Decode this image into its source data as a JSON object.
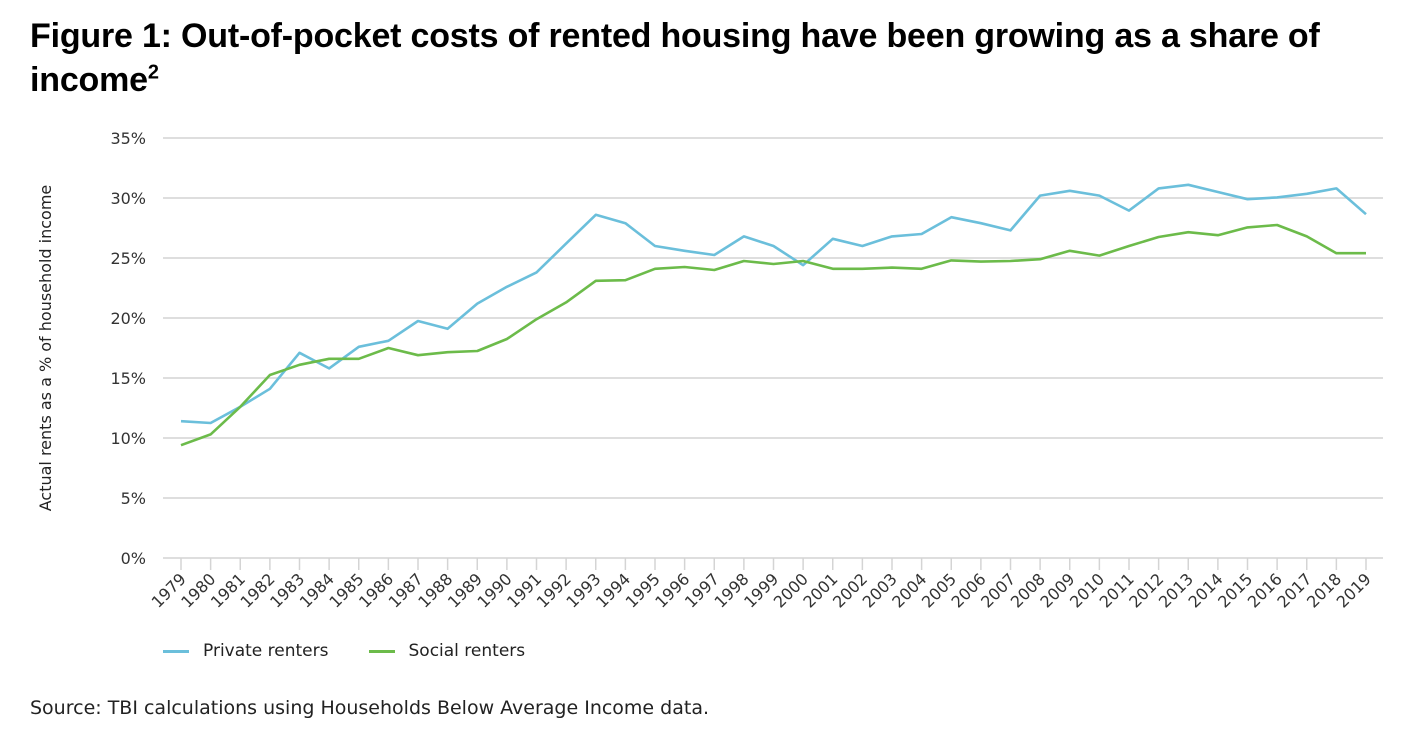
{
  "title": "Figure 1: Out-of-pocket costs of rented housing have been growing as a share of income",
  "title_footnote": "2",
  "source": "Source: TBI calculations using Households Below Average Income data.",
  "chart_data": {
    "type": "line",
    "title": "Figure 1: Out-of-pocket costs of rented housing have been growing as a share of income",
    "xlabel": "",
    "ylabel": "Actual rents as a % of household income",
    "ylim": [
      0,
      35
    ],
    "yticks": [
      0,
      5,
      10,
      15,
      20,
      25,
      30,
      35
    ],
    "ytick_labels": [
      "0%",
      "5%",
      "10%",
      "15%",
      "20%",
      "25%",
      "30%",
      "35%"
    ],
    "grid": true,
    "legend_position": "bottom-left",
    "x": [
      "1979",
      "1980",
      "1981",
      "1982",
      "1983",
      "1984",
      "1985",
      "1986",
      "1987",
      "1988",
      "1989",
      "1990",
      "1991",
      "1992",
      "1993",
      "1994",
      "1995",
      "1996",
      "1997",
      "1998",
      "1999",
      "2000",
      "2001",
      "2002",
      "2003",
      "2004",
      "2005",
      "2006",
      "2007",
      "2008",
      "2009",
      "2010",
      "2011",
      "2012",
      "2013",
      "2014",
      "2015",
      "2016",
      "2017",
      "2018",
      "2019"
    ],
    "series": [
      {
        "name": "Private renters",
        "color": "#6bbfdb",
        "values": [
          11.4,
          11.25,
          12.6,
          14.1,
          17.1,
          15.8,
          17.6,
          18.1,
          19.75,
          19.1,
          21.2,
          22.6,
          23.8,
          26.2,
          28.6,
          27.9,
          26.0,
          25.6,
          25.25,
          26.8,
          26.0,
          24.4,
          26.6,
          26.0,
          26.8,
          27.0,
          28.4,
          27.9,
          27.3,
          30.2,
          30.6,
          30.2,
          28.95,
          30.8,
          31.1,
          30.5,
          29.9,
          30.05,
          30.35,
          30.8,
          28.65
        ]
      },
      {
        "name": "Social renters",
        "color": "#6cbb4a",
        "values": [
          9.4,
          10.3,
          12.6,
          15.25,
          16.1,
          16.6,
          16.6,
          17.5,
          16.9,
          17.15,
          17.25,
          18.25,
          19.9,
          21.3,
          23.1,
          23.15,
          24.1,
          24.25,
          24.0,
          24.75,
          24.5,
          24.75,
          24.1,
          24.1,
          24.2,
          24.1,
          24.8,
          24.7,
          24.75,
          24.9,
          25.6,
          25.2,
          26.0,
          26.75,
          27.15,
          26.9,
          27.55,
          27.75,
          26.8,
          25.4,
          25.4
        ]
      }
    ]
  }
}
